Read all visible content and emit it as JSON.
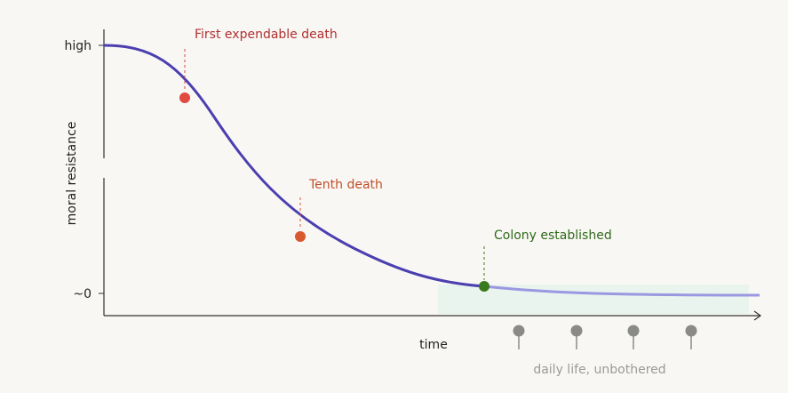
{
  "axes": {
    "y_label": "moral resistance",
    "x_label": "time",
    "y_ticks": [
      "high",
      "~0"
    ]
  },
  "annotations": [
    {
      "label": "First expendable death"
    },
    {
      "label": "Tenth death"
    },
    {
      "label": "Colony established"
    }
  ],
  "caption": "daily life, unbothered"
}
